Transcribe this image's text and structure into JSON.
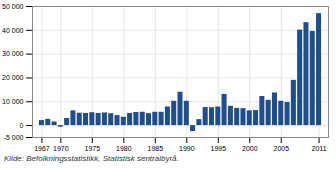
{
  "chart_data": {
    "type": "bar",
    "caption": "Kilde: Befolkningsstatistikk, Statistisk sentralbyrå.",
    "x": [
      1967,
      1968,
      1969,
      1970,
      1971,
      1972,
      1973,
      1974,
      1975,
      1976,
      1977,
      1978,
      1979,
      1980,
      1981,
      1982,
      1983,
      1984,
      1985,
      1986,
      1987,
      1988,
      1989,
      1990,
      1991,
      1992,
      1993,
      1994,
      1995,
      1996,
      1997,
      1998,
      1999,
      2000,
      2001,
      2002,
      2003,
      2004,
      2005,
      2006,
      2007,
      2008,
      2009,
      2010,
      2011
    ],
    "values": [
      2100,
      2600,
      1500,
      -700,
      3000,
      6200,
      5200,
      5100,
      5400,
      5100,
      5300,
      5000,
      4200,
      3500,
      5100,
      5500,
      5600,
      5000,
      5600,
      5600,
      7800,
      10200,
      14000,
      10200,
      -2500,
      2500,
      7600,
      7500,
      7800,
      13100,
      8100,
      7200,
      7100,
      6200,
      6300,
      12200,
      10600,
      13700,
      10200,
      9700,
      19000,
      40100,
      43200,
      39500,
      47000
    ],
    "color": "#1F4E8C",
    "xlim": [
      1965.5,
      2012.5
    ],
    "xticks": [
      1967,
      1970,
      1975,
      1980,
      1985,
      1990,
      1995,
      2000,
      2005,
      2011
    ],
    "ylim": [
      -5000,
      50000
    ],
    "yticks": [
      {
        "value": -5000,
        "label": "-5 000"
      },
      0,
      {
        "value": 10000,
        "label": "10 000"
      },
      {
        "value": 20000,
        "label": "20 000"
      },
      {
        "value": 30000,
        "label": "30 000"
      },
      {
        "value": 40000,
        "label": "40 000"
      },
      {
        "value": 50000,
        "label": "50 000"
      }
    ],
    "grid": true
  }
}
